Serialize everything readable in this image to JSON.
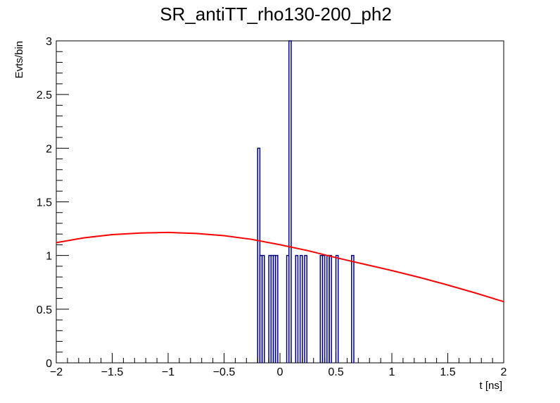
{
  "chart_data": {
    "type": "histogram",
    "title": "SR_antiTT_rho130-200_ph2",
    "xlabel": "t [ns]",
    "ylabel": "Evts/bin",
    "xlim": [
      -2,
      2
    ],
    "ylim": [
      0,
      3
    ],
    "x_ticks": [
      -2,
      -1.5,
      -1,
      -0.5,
      0,
      0.5,
      1,
      1.5,
      2
    ],
    "x_tick_labels": [
      "−2",
      "−1.5",
      "−1",
      "−0.5",
      "0",
      "0.5",
      "1",
      "1.5",
      "2"
    ],
    "y_ticks": [
      0,
      0.5,
      1,
      1.5,
      2,
      2.5,
      3
    ],
    "y_tick_labels": [
      "0",
      "0.5",
      "1",
      "1.5",
      "2",
      "2.5",
      "3"
    ],
    "grid": false,
    "legend": "none",
    "histogram": {
      "bin_width": 0.02,
      "color": "#000080",
      "bins": [
        {
          "x": -0.2,
          "count": 2
        },
        {
          "x": -0.18,
          "count": 1
        },
        {
          "x": -0.16,
          "count": 1
        },
        {
          "x": -0.1,
          "count": 1
        },
        {
          "x": -0.08,
          "count": 1
        },
        {
          "x": -0.06,
          "count": 1
        },
        {
          "x": -0.04,
          "count": 1
        },
        {
          "x": 0.06,
          "count": 1
        },
        {
          "x": 0.08,
          "count": 3
        },
        {
          "x": 0.14,
          "count": 1
        },
        {
          "x": 0.18,
          "count": 1
        },
        {
          "x": 0.22,
          "count": 1
        },
        {
          "x": 0.36,
          "count": 1
        },
        {
          "x": 0.38,
          "count": 1
        },
        {
          "x": 0.42,
          "count": 1
        },
        {
          "x": 0.44,
          "count": 1
        },
        {
          "x": 0.5,
          "count": 1
        },
        {
          "x": 0.64,
          "count": 1
        }
      ]
    },
    "fit_curve": {
      "color": "#ff0000",
      "x": [
        -2,
        -1.75,
        -1.5,
        -1.25,
        -1,
        -0.75,
        -0.5,
        -0.25,
        0,
        0.25,
        0.5,
        0.75,
        1,
        1.25,
        1.5,
        1.75,
        2
      ],
      "y": [
        1.12,
        1.165,
        1.195,
        1.21,
        1.215,
        1.205,
        1.185,
        1.15,
        1.1,
        1.045,
        0.98,
        0.92,
        0.86,
        0.795,
        0.725,
        0.65,
        0.57
      ]
    }
  }
}
